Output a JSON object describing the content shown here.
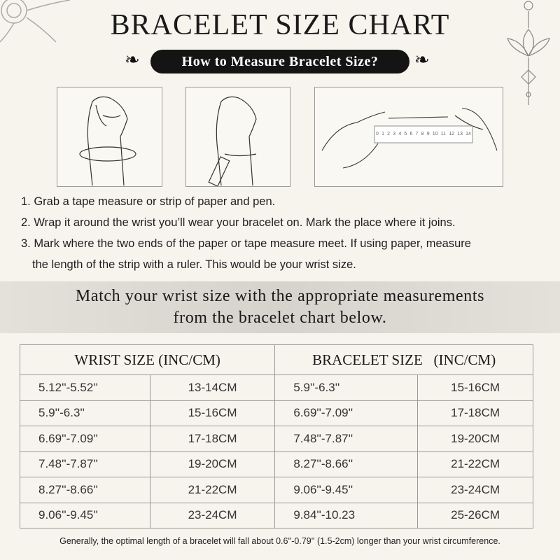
{
  "title": "BRACELET SIZE CHART",
  "subtitle": "How to Measure Bracelet Size?",
  "ruler_numbers": [
    "0",
    "1",
    "2",
    "3",
    "4",
    "5",
    "6",
    "7",
    "8",
    "9",
    "10",
    "11",
    "12",
    "13",
    "14"
  ],
  "steps": [
    "1. Grab a tape measure or strip of paper and pen.",
    "2. Wrap it around the wrist you’ll wear your bracelet on. Mark the place where it joins.",
    "3. Mark where the two ends of the paper or tape measure meet. If using paper, measure",
    "the length of the strip with a ruler. This would be your wrist size."
  ],
  "band": {
    "line1": "Match your wrist size with the appropriate measurements",
    "line2": "from the bracelet chart below."
  },
  "table": {
    "headers": [
      "WRIST SIZE (INC/CM)",
      "BRACELET SIZE   (INC/CM)"
    ],
    "rows": [
      [
        "5.12''-5.52''",
        "13-14CM",
        "5.9''-6.3''",
        "15-16CM"
      ],
      [
        "5.9''-6.3''",
        "15-16CM",
        "6.69''-7.09''",
        "17-18CM"
      ],
      [
        "6.69''-7.09''",
        "17-18CM",
        "7.48''-7.87''",
        "19-20CM"
      ],
      [
        "7.48''-7.87''",
        "19-20CM",
        "8.27''-8.66''",
        "21-22CM"
      ],
      [
        "8.27''-8.66''",
        "21-22CM",
        "9.06''-9.45''",
        "23-24CM"
      ],
      [
        "9.06''-9.45''",
        "23-24CM",
        "9.84''-10.23",
        "25-26CM"
      ]
    ]
  },
  "footnote": "Generally, the optimal length of a bracelet will fall about 0.6''-0.79'' (1.5-2cm) longer than your wrist circumference."
}
